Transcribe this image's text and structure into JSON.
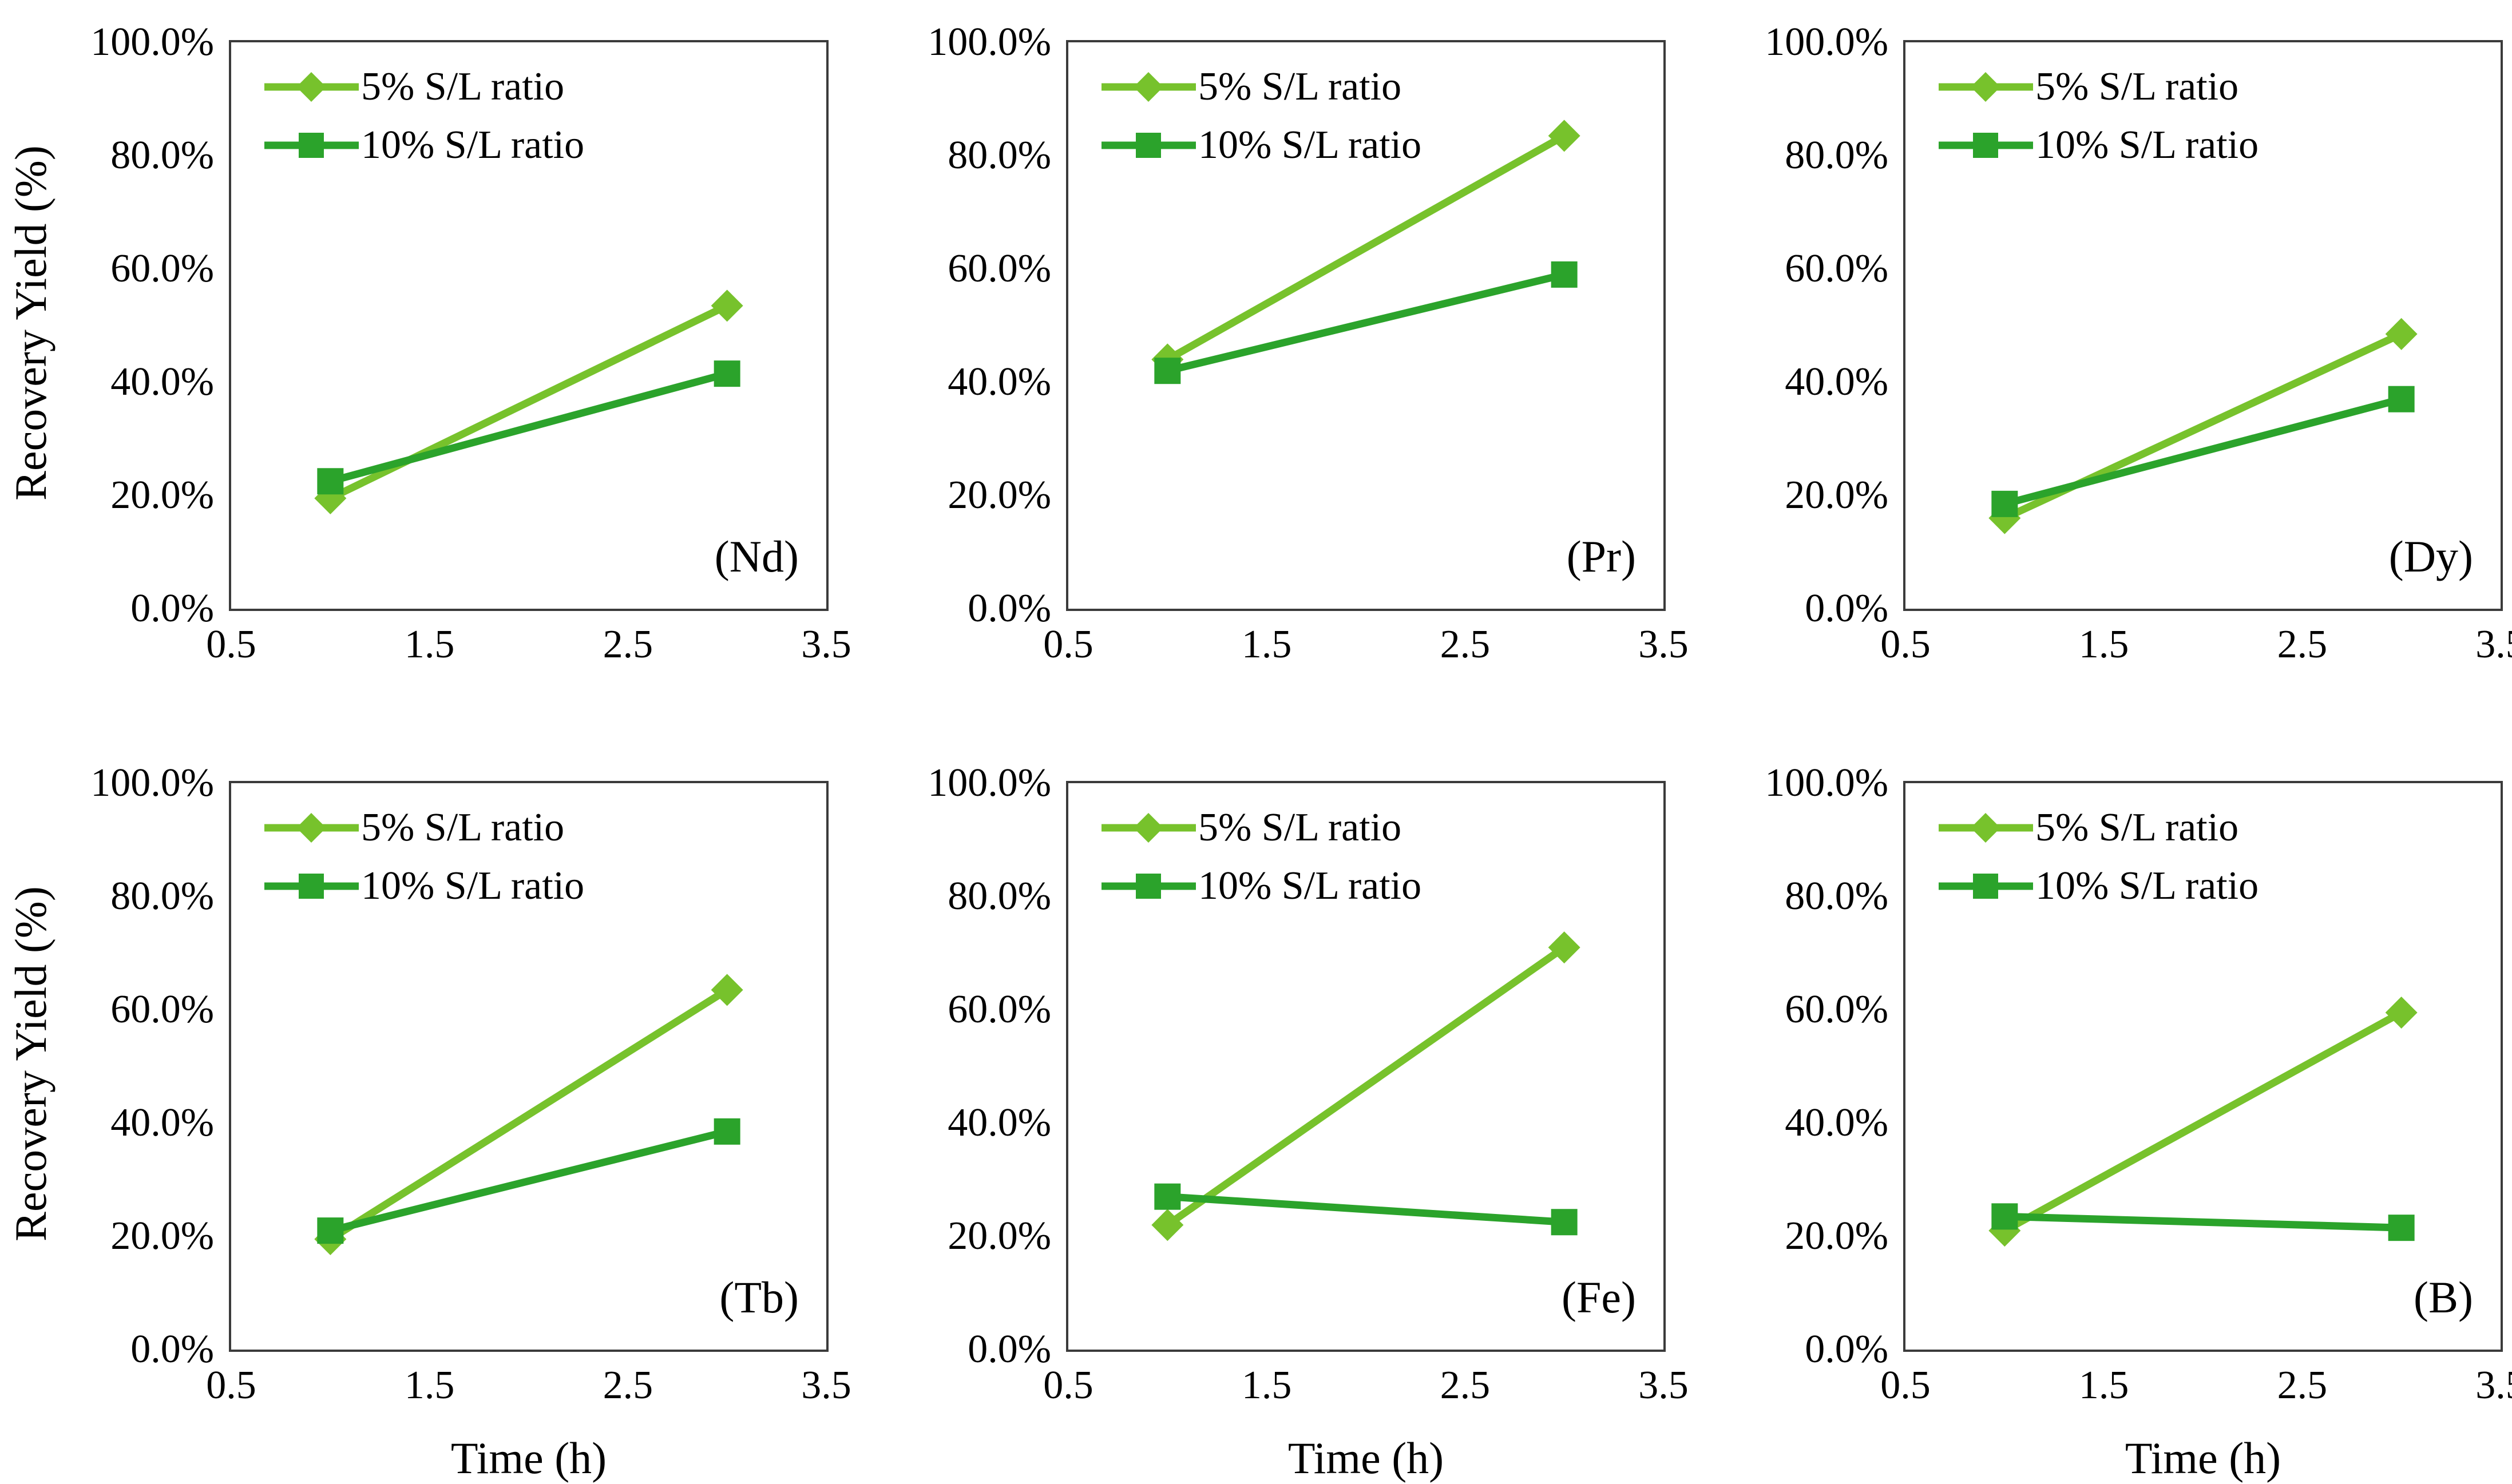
{
  "figure": {
    "y_axis_title": "Recovery Yield (%)",
    "x_axis_title": "Time (h)",
    "y_ticks": [
      {
        "label": "100.0%",
        "value": 100
      },
      {
        "label": "80.0%",
        "value": 80
      },
      {
        "label": "60.0%",
        "value": 60
      },
      {
        "label": "40.0%",
        "value": 40
      },
      {
        "label": "20.0%",
        "value": 20
      },
      {
        "label": "0.0%",
        "value": 0
      }
    ],
    "x_ticks": [
      {
        "label": "0.5",
        "value": 0.5
      },
      {
        "label": "1.5",
        "value": 1.5
      },
      {
        "label": "2.5",
        "value": 2.5
      },
      {
        "label": "3.5",
        "value": 3.5
      }
    ]
  },
  "legend": {
    "items": [
      {
        "label": "5% S/L ratio",
        "color": "#77c22c",
        "marker": "diamond"
      },
      {
        "label": "10% S/L ratio",
        "color": "#2ba32b",
        "marker": "square"
      }
    ]
  },
  "colors": {
    "series_5sl": "#77c22c",
    "series_10sl": "#2ba32b",
    "plot_border": "#3b3b3b",
    "text": "#000000"
  },
  "chart_data": [
    {
      "type": "line",
      "panel_label": "(Nd)",
      "x": [
        1,
        3
      ],
      "series": [
        {
          "name": "5% S/L ratio",
          "marker": "diamond",
          "color": "#77c22c",
          "values": [
            19.5,
            53.5
          ]
        },
        {
          "name": "10% S/L ratio",
          "marker": "square",
          "color": "#2ba32b",
          "values": [
            22.5,
            41.5
          ]
        }
      ],
      "xlabel": "",
      "ylabel": "Recovery Yield (%)",
      "xlim": [
        0.5,
        3.5
      ],
      "ylim": [
        0,
        100
      ],
      "grid": false,
      "legend_position": "top-left",
      "show_y_title": true,
      "show_x_title": false
    },
    {
      "type": "line",
      "panel_label": "(Pr)",
      "x": [
        1,
        3
      ],
      "series": [
        {
          "name": "5% S/L ratio",
          "marker": "diamond",
          "color": "#77c22c",
          "values": [
            44.0,
            83.5
          ]
        },
        {
          "name": "10% S/L ratio",
          "marker": "square",
          "color": "#2ba32b",
          "values": [
            42.0,
            59.0
          ]
        }
      ],
      "xlabel": "",
      "ylabel": "",
      "xlim": [
        0.5,
        3.5
      ],
      "ylim": [
        0,
        100
      ],
      "grid": false,
      "legend_position": "top-left",
      "show_y_title": false,
      "show_x_title": false
    },
    {
      "type": "line",
      "panel_label": "(Dy)",
      "x": [
        1,
        3
      ],
      "series": [
        {
          "name": "5% S/L ratio",
          "marker": "diamond",
          "color": "#77c22c",
          "values": [
            16.0,
            48.5
          ]
        },
        {
          "name": "10% S/L ratio",
          "marker": "square",
          "color": "#2ba32b",
          "values": [
            18.5,
            37.0
          ]
        }
      ],
      "xlabel": "",
      "ylabel": "",
      "xlim": [
        0.5,
        3.5
      ],
      "ylim": [
        0,
        100
      ],
      "grid": false,
      "legend_position": "top-left",
      "show_y_title": false,
      "show_x_title": false
    },
    {
      "type": "line",
      "panel_label": "(Tb)",
      "x": [
        1,
        3
      ],
      "series": [
        {
          "name": "5% S/L ratio",
          "marker": "diamond",
          "color": "#77c22c",
          "values": [
            19.5,
            63.5
          ]
        },
        {
          "name": "10% S/L ratio",
          "marker": "square",
          "color": "#2ba32b",
          "values": [
            21.0,
            38.5
          ]
        }
      ],
      "xlabel": "Time (h)",
      "ylabel": "Recovery Yield (%)",
      "xlim": [
        0.5,
        3.5
      ],
      "ylim": [
        0,
        100
      ],
      "grid": false,
      "legend_position": "top-left",
      "show_y_title": true,
      "show_x_title": true
    },
    {
      "type": "line",
      "panel_label": "(Fe)",
      "x": [
        1,
        3
      ],
      "series": [
        {
          "name": "5% S/L ratio",
          "marker": "diamond",
          "color": "#77c22c",
          "values": [
            22.0,
            71.0
          ]
        },
        {
          "name": "10% S/L ratio",
          "marker": "square",
          "color": "#2ba32b",
          "values": [
            27.0,
            22.5
          ]
        }
      ],
      "xlabel": "Time (h)",
      "ylabel": "",
      "xlim": [
        0.5,
        3.5
      ],
      "ylim": [
        0,
        100
      ],
      "grid": false,
      "legend_position": "top-left",
      "show_y_title": false,
      "show_x_title": true
    },
    {
      "type": "line",
      "panel_label": "(B)",
      "x": [
        1,
        3
      ],
      "series": [
        {
          "name": "5% S/L ratio",
          "marker": "diamond",
          "color": "#77c22c",
          "values": [
            21.0,
            59.5
          ]
        },
        {
          "name": "10% S/L ratio",
          "marker": "square",
          "color": "#2ba32b",
          "values": [
            23.5,
            21.5
          ]
        }
      ],
      "xlabel": "Time (h)",
      "ylabel": "",
      "xlim": [
        0.5,
        3.5
      ],
      "ylim": [
        0,
        100
      ],
      "grid": false,
      "legend_position": "top-left",
      "show_y_title": false,
      "show_x_title": true
    }
  ]
}
